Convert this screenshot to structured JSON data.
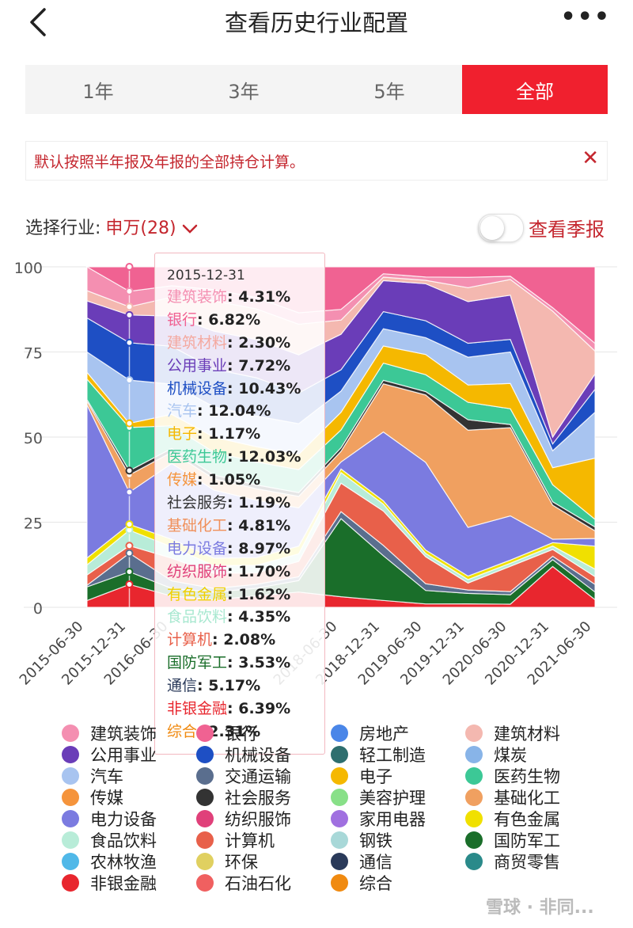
{
  "header": {
    "title": "查看历史行业配置",
    "more": "•••"
  },
  "tabs": [
    {
      "label": "1年",
      "active": false
    },
    {
      "label": "3年",
      "active": false
    },
    {
      "label": "5年",
      "active": false
    },
    {
      "label": "全部",
      "active": true
    }
  ],
  "notice": {
    "text": "默认按照半年报及年报的全部持仓计算。",
    "close": "✕"
  },
  "selector": {
    "label": "选择行业:",
    "value": "申万(28)"
  },
  "quarter_toggle": {
    "label": "查看季报",
    "on": false
  },
  "tooltip": {
    "date": "2015-12-31",
    "rows": [
      {
        "name": "建筑装饰",
        "value": ": 4.31%",
        "color": "#f48fb1"
      },
      {
        "name": "银行",
        "value": ": 6.82%",
        "color": "#f06292"
      },
      {
        "name": "建筑材料",
        "value": ": 2.30%",
        "color": "#f4a9a0"
      },
      {
        "name": "公用事业",
        "value": ": 7.72%",
        "color": "#6a3db8"
      },
      {
        "name": "机械设备",
        "value": ": 10.43%",
        "color": "#1e4fc4"
      },
      {
        "name": "汽车",
        "value": ": 12.04%",
        "color": "#a8c4f0"
      },
      {
        "name": "电子",
        "value": ": 1.17%",
        "color": "#f5b800"
      },
      {
        "name": "医药生物",
        "value": ": 12.03%",
        "color": "#3cc896"
      },
      {
        "name": "传媒",
        "value": ": 1.05%",
        "color": "#f5943c"
      },
      {
        "name": "社会服务",
        "value": ": 1.19%",
        "color": "#333333"
      },
      {
        "name": "基础化工",
        "value": ": 4.81%",
        "color": "#f0905a"
      },
      {
        "name": "电力设备",
        "value": ": 8.97%",
        "color": "#7b7be0"
      },
      {
        "name": "纺织服饰",
        "value": ": 1.70%",
        "color": "#e0407a"
      },
      {
        "name": "有色金属",
        "value": ": 1.62%",
        "color": "#f0d000"
      },
      {
        "name": "食品饮料",
        "value": ": 4.35%",
        "color": "#a8e8d0"
      },
      {
        "name": "计算机",
        "value": ": 2.08%",
        "color": "#e8604a"
      },
      {
        "name": "国防军工",
        "value": ": 3.53%",
        "color": "#1a6e2a"
      },
      {
        "name": "通信",
        "value": ": 5.17%",
        "color": "#2a3a5a"
      },
      {
        "name": "非银金融",
        "value": ": 6.39%",
        "color": "#e8262e"
      },
      {
        "name": "综合",
        "value": ": 2.31%",
        "color": "#f08a10"
      }
    ]
  },
  "legend": [
    {
      "label": "建筑装饰",
      "color": "#f48fb1"
    },
    {
      "label": "银行",
      "color": "#f06292"
    },
    {
      "label": "房地产",
      "color": "#4a86e8"
    },
    {
      "label": "建筑材料",
      "color": "#f4b8b0"
    },
    {
      "label": "公用事业",
      "color": "#6a3db8"
    },
    {
      "label": "机械设备",
      "color": "#1e4fc4"
    },
    {
      "label": "轻工制造",
      "color": "#2e6e6e"
    },
    {
      "label": "煤炭",
      "color": "#88b4e8"
    },
    {
      "label": "汽车",
      "color": "#a8c4f0"
    },
    {
      "label": "交通运输",
      "color": "#5a6e8e"
    },
    {
      "label": "电子",
      "color": "#f5b800"
    },
    {
      "label": "医药生物",
      "color": "#3cc896"
    },
    {
      "label": "传媒",
      "color": "#f5943c"
    },
    {
      "label": "社会服务",
      "color": "#333333"
    },
    {
      "label": "美容护理",
      "color": "#88e088"
    },
    {
      "label": "基础化工",
      "color": "#f0a060"
    },
    {
      "label": "电力设备",
      "color": "#7b7be0"
    },
    {
      "label": "纺织服饰",
      "color": "#e0407a"
    },
    {
      "label": "家用电器",
      "color": "#a070e0"
    },
    {
      "label": "有色金属",
      "color": "#f0e000"
    },
    {
      "label": "食品饮料",
      "color": "#b8ecd8"
    },
    {
      "label": "计算机",
      "color": "#e8604a"
    },
    {
      "label": "钢铁",
      "color": "#a8d8d8"
    },
    {
      "label": "国防军工",
      "color": "#1a6e2a"
    },
    {
      "label": "农林牧渔",
      "color": "#50b8e8"
    },
    {
      "label": "环保",
      "color": "#e0d060"
    },
    {
      "label": "通信",
      "color": "#2a3a5a"
    },
    {
      "label": "商贸零售",
      "color": "#2a8a8a"
    },
    {
      "label": "非银金融",
      "color": "#e8262e"
    },
    {
      "label": "石油石化",
      "color": "#f06060"
    },
    {
      "label": "综合",
      "color": "#f08a10"
    }
  ],
  "chart_data": {
    "type": "area",
    "stacked": true,
    "x": [
      "2015-06-30",
      "2015-12-31",
      "2016-06-30",
      "2016-12-31",
      "2017-06-30",
      "2017-12-31",
      "2018-06-30",
      "2018-12-31",
      "2019-06-30",
      "2019-12-31",
      "2020-06-30",
      "2020-12-31",
      "2021-06-30"
    ],
    "x_tick_labels": [
      "2015-06-30",
      "2015-12-31",
      "2016-06-30",
      "",
      "",
      "",
      "2018-06-30",
      "2018-12-31",
      "2019-06-30",
      "2019-12-31",
      "2020-06-30",
      "2020-12-31",
      "2021-06-30"
    ],
    "y_ticks": [
      0,
      25,
      50,
      75,
      100
    ],
    "ylim": [
      0,
      100
    ],
    "series": [
      {
        "name": "非银金融",
        "color": "#e8262e",
        "values": [
          2,
          6.39,
          3,
          2,
          3,
          4,
          3,
          2,
          1,
          1,
          1,
          12,
          1
        ]
      },
      {
        "name": "国防军工",
        "color": "#1a6e2a",
        "values": [
          4,
          3.53,
          2,
          2,
          2,
          3,
          22,
          13,
          4,
          3,
          3,
          2,
          1
        ]
      },
      {
        "name": "通信",
        "color": "#5a6e8e",
        "values": [
          0.5,
          5.17,
          2,
          1,
          1,
          1,
          2,
          3,
          2,
          1,
          1,
          1,
          1
        ]
      },
      {
        "name": "计算机",
        "color": "#e8604a",
        "values": [
          3,
          2.08,
          6,
          4,
          3,
          4,
          8,
          10,
          8,
          2,
          8,
          2,
          1
        ]
      },
      {
        "name": "食品饮料",
        "color": "#b8ecd8",
        "values": [
          3,
          4.35,
          3,
          2,
          2,
          2,
          3,
          2,
          1,
          1,
          1,
          1,
          1
        ]
      },
      {
        "name": "有色金属",
        "color": "#f0e000",
        "values": [
          2,
          1.62,
          2,
          2,
          2,
          2,
          1,
          1,
          1,
          1,
          1,
          1,
          3
        ]
      },
      {
        "name": "电力设备",
        "color": "#7b7be0",
        "values": [
          45,
          8.97,
          20,
          18,
          15,
          10,
          2,
          20,
          26,
          14,
          14,
          1,
          1
        ]
      },
      {
        "name": "基础化工",
        "color": "#f0a060",
        "values": [
          1,
          4.81,
          3,
          3,
          3,
          3,
          3,
          14,
          20,
          28,
          28,
          10,
          1
        ]
      },
      {
        "name": "社会服务",
        "color": "#333333",
        "values": [
          0.5,
          1.19,
          1,
          1,
          1,
          1,
          1,
          1,
          1,
          3,
          1,
          1,
          0.5
        ]
      },
      {
        "name": "医药生物",
        "color": "#3cc896",
        "values": [
          6,
          12.03,
          6,
          6,
          6,
          6,
          5,
          5,
          5,
          5,
          5,
          5,
          1
        ]
      },
      {
        "name": "电子",
        "color": "#f5b800",
        "values": [
          2,
          1.17,
          3,
          4,
          4,
          4,
          5,
          5,
          6,
          5,
          8,
          5,
          8
        ]
      },
      {
        "name": "汽车",
        "color": "#a8c4f0",
        "values": [
          6,
          12.04,
          8,
          8,
          8,
          8,
          6,
          5,
          5,
          8,
          10,
          5,
          6
        ]
      },
      {
        "name": "机械设备",
        "color": "#1e4fc4",
        "values": [
          10,
          10.43,
          10,
          10,
          10,
          8,
          6,
          5,
          5,
          4,
          4,
          2,
          3
        ]
      },
      {
        "name": "公用事业",
        "color": "#6a3db8",
        "values": [
          5,
          7.72,
          8,
          10,
          10,
          10,
          10,
          9,
          11,
          12,
          14,
          2,
          2
        ]
      },
      {
        "name": "建筑材料",
        "color": "#f4b8b0",
        "values": [
          3,
          2.3,
          5,
          8,
          8,
          8,
          4,
          1,
          1,
          4,
          5,
          37,
          3
        ]
      },
      {
        "name": "建筑装饰",
        "color": "#f48fb1",
        "values": [
          7,
          4.31,
          3,
          3,
          3,
          3,
          3,
          1,
          1,
          3,
          1,
          1,
          1
        ]
      },
      {
        "name": "银行",
        "color": "#f06292",
        "values": [
          0,
          6.82,
          5,
          6,
          8,
          12,
          12,
          2,
          3,
          3,
          3,
          12,
          10
        ]
      }
    ]
  },
  "watermark": "雪球 ·  非同..."
}
